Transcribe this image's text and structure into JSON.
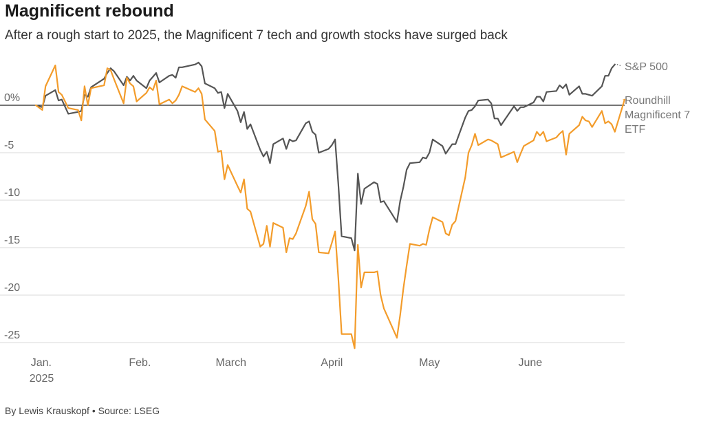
{
  "header": {
    "title": "Magnificent rebound",
    "subtitle": "After a rough start to 2025, the Magnificent 7 tech and growth stocks have surged back"
  },
  "footer": {
    "credit": "By Lewis Krauskopf • Source: LSEG"
  },
  "colors": {
    "sp500": "#555555",
    "mag7": "#f39c2b",
    "grid": "#d9d9d9",
    "zero_line": "#222222"
  },
  "chart_data": {
    "type": "line",
    "title": "Magnificent rebound",
    "subtitle": "After a rough start to 2025, the Magnificent 7 tech and growth stocks have surged back",
    "xlabel": "",
    "ylabel": "",
    "ylim": [
      -25,
      5
    ],
    "y_ticks": [
      {
        "value": 0,
        "label": "0%"
      },
      {
        "value": -5,
        "label": "-5"
      },
      {
        "value": -10,
        "label": "-10"
      },
      {
        "value": -15,
        "label": "-15"
      },
      {
        "value": -20,
        "label": "-20"
      },
      {
        "value": -25,
        "label": "-25"
      }
    ],
    "x_ticks": [
      {
        "date": "2025-01-01",
        "label": "Jan.",
        "sublabel": "2025"
      },
      {
        "date": "2025-02-01",
        "label": "Feb."
      },
      {
        "date": "2025-03-01",
        "label": "March"
      },
      {
        "date": "2025-04-01",
        "label": "April"
      },
      {
        "date": "2025-05-01",
        "label": "May"
      },
      {
        "date": "2025-06-01",
        "label": "June"
      }
    ],
    "xlim": [
      "2024-12-31",
      "2025-06-30"
    ],
    "grid": true,
    "series": [
      {
        "name": "S&P 500",
        "color_key": "sp500",
        "points": [
          [
            "2024-12-31",
            0.0
          ],
          [
            "2025-01-02",
            -0.2
          ],
          [
            "2025-01-03",
            1.0
          ],
          [
            "2025-01-06",
            1.6
          ],
          [
            "2025-01-07",
            0.5
          ],
          [
            "2025-01-08",
            0.6
          ],
          [
            "2025-01-10",
            -0.9
          ],
          [
            "2025-01-13",
            -0.7
          ],
          [
            "2025-01-14",
            -0.6
          ],
          [
            "2025-01-15",
            1.1
          ],
          [
            "2025-01-16",
            0.9
          ],
          [
            "2025-01-17",
            1.9
          ],
          [
            "2025-01-21",
            2.8
          ],
          [
            "2025-01-22",
            3.4
          ],
          [
            "2025-01-23",
            3.9
          ],
          [
            "2025-01-24",
            3.6
          ],
          [
            "2025-01-27",
            2.1
          ],
          [
            "2025-01-28",
            3.0
          ],
          [
            "2025-01-29",
            2.6
          ],
          [
            "2025-01-30",
            3.1
          ],
          [
            "2025-01-31",
            2.6
          ],
          [
            "2025-02-03",
            1.8
          ],
          [
            "2025-02-04",
            2.6
          ],
          [
            "2025-02-05",
            3.0
          ],
          [
            "2025-02-06",
            3.4
          ],
          [
            "2025-02-07",
            2.4
          ],
          [
            "2025-02-10",
            3.1
          ],
          [
            "2025-02-11",
            3.2
          ],
          [
            "2025-02-12",
            2.9
          ],
          [
            "2025-02-13",
            4.0
          ],
          [
            "2025-02-14",
            4.0
          ],
          [
            "2025-02-18",
            4.3
          ],
          [
            "2025-02-19",
            4.5
          ],
          [
            "2025-02-20",
            4.1
          ],
          [
            "2025-02-21",
            2.3
          ],
          [
            "2025-02-24",
            1.8
          ],
          [
            "2025-02-25",
            1.3
          ],
          [
            "2025-02-26",
            1.4
          ],
          [
            "2025-02-27",
            -0.3
          ],
          [
            "2025-02-28",
            1.2
          ],
          [
            "2025-03-03",
            -0.6
          ],
          [
            "2025-03-04",
            -1.8
          ],
          [
            "2025-03-05",
            -0.7
          ],
          [
            "2025-03-06",
            -2.5
          ],
          [
            "2025-03-07",
            -2.0
          ],
          [
            "2025-03-10",
            -4.7
          ],
          [
            "2025-03-11",
            -5.4
          ],
          [
            "2025-03-12",
            -4.9
          ],
          [
            "2025-03-13",
            -6.1
          ],
          [
            "2025-03-14",
            -4.1
          ],
          [
            "2025-03-17",
            -3.5
          ],
          [
            "2025-03-18",
            -4.6
          ],
          [
            "2025-03-19",
            -3.6
          ],
          [
            "2025-03-20",
            -3.8
          ],
          [
            "2025-03-21",
            -3.7
          ],
          [
            "2025-03-24",
            -1.9
          ],
          [
            "2025-03-25",
            -1.7
          ],
          [
            "2025-03-26",
            -2.8
          ],
          [
            "2025-03-27",
            -3.1
          ],
          [
            "2025-03-28",
            -5.0
          ],
          [
            "2025-03-31",
            -4.6
          ],
          [
            "2025-04-01",
            -4.2
          ],
          [
            "2025-04-02",
            -3.6
          ],
          [
            "2025-04-03",
            -8.3
          ],
          [
            "2025-04-04",
            -13.8
          ],
          [
            "2025-04-07",
            -14.0
          ],
          [
            "2025-04-08",
            -15.3
          ],
          [
            "2025-04-09",
            -7.2
          ],
          [
            "2025-04-10",
            -10.4
          ],
          [
            "2025-04-11",
            -8.8
          ],
          [
            "2025-04-14",
            -8.1
          ],
          [
            "2025-04-15",
            -8.3
          ],
          [
            "2025-04-16",
            -10.2
          ],
          [
            "2025-04-17",
            -10.1
          ],
          [
            "2025-04-21",
            -12.3
          ],
          [
            "2025-04-22",
            -10.1
          ],
          [
            "2025-04-23",
            -8.6
          ],
          [
            "2025-04-24",
            -6.8
          ],
          [
            "2025-04-25",
            -6.1
          ],
          [
            "2025-04-28",
            -6.0
          ],
          [
            "2025-04-29",
            -5.5
          ],
          [
            "2025-04-30",
            -5.6
          ],
          [
            "2025-05-01",
            -5.0
          ],
          [
            "2025-05-02",
            -3.6
          ],
          [
            "2025-05-05",
            -4.3
          ],
          [
            "2025-05-06",
            -5.1
          ],
          [
            "2025-05-07",
            -4.6
          ],
          [
            "2025-05-08",
            -4.1
          ],
          [
            "2025-05-09",
            -4.1
          ],
          [
            "2025-05-12",
            -1.3
          ],
          [
            "2025-05-13",
            -0.6
          ],
          [
            "2025-05-14",
            -0.5
          ],
          [
            "2025-05-15",
            -0.1
          ],
          [
            "2025-05-16",
            0.5
          ],
          [
            "2025-05-19",
            0.6
          ],
          [
            "2025-05-20",
            0.2
          ],
          [
            "2025-05-21",
            -1.4
          ],
          [
            "2025-05-22",
            -1.4
          ],
          [
            "2025-05-23",
            -2.1
          ],
          [
            "2025-05-27",
            -0.1
          ],
          [
            "2025-05-28",
            -0.6
          ],
          [
            "2025-05-29",
            -0.2
          ],
          [
            "2025-05-30",
            -0.2
          ],
          [
            "2025-06-02",
            0.3
          ],
          [
            "2025-06-03",
            0.9
          ],
          [
            "2025-06-04",
            0.9
          ],
          [
            "2025-06-05",
            0.4
          ],
          [
            "2025-06-06",
            1.4
          ],
          [
            "2025-06-09",
            1.5
          ],
          [
            "2025-06-10",
            2.1
          ],
          [
            "2025-06-11",
            1.8
          ],
          [
            "2025-06-12",
            2.2
          ],
          [
            "2025-06-13",
            1.1
          ],
          [
            "2025-06-16",
            2.0
          ],
          [
            "2025-06-17",
            1.2
          ],
          [
            "2025-06-18",
            1.2
          ],
          [
            "2025-06-20",
            1.0
          ],
          [
            "2025-06-23",
            2.0
          ],
          [
            "2025-06-24",
            3.1
          ],
          [
            "2025-06-25",
            3.1
          ],
          [
            "2025-06-26",
            3.9
          ],
          [
            "2025-06-27",
            4.3
          ]
        ]
      },
      {
        "name": "Roundhill Magnificent 7 ETF",
        "label_lines": [
          "Roundhill",
          "Magnificent 7",
          "ETF"
        ],
        "color_key": "mag7",
        "points": [
          [
            "2024-12-31",
            0.0
          ],
          [
            "2025-01-02",
            -0.5
          ],
          [
            "2025-01-03",
            2.0
          ],
          [
            "2025-01-06",
            4.2
          ],
          [
            "2025-01-07",
            1.4
          ],
          [
            "2025-01-08",
            1.1
          ],
          [
            "2025-01-10",
            -0.3
          ],
          [
            "2025-01-13",
            -0.5
          ],
          [
            "2025-01-14",
            -1.6
          ],
          [
            "2025-01-15",
            2.0
          ],
          [
            "2025-01-16",
            0.0
          ],
          [
            "2025-01-17",
            1.8
          ],
          [
            "2025-01-21",
            2.1
          ],
          [
            "2025-01-22",
            3.9
          ],
          [
            "2025-01-23",
            3.7
          ],
          [
            "2025-01-24",
            2.8
          ],
          [
            "2025-01-27",
            0.2
          ],
          [
            "2025-01-28",
            2.9
          ],
          [
            "2025-01-29",
            2.3
          ],
          [
            "2025-01-30",
            2.0
          ],
          [
            "2025-01-31",
            0.4
          ],
          [
            "2025-02-03",
            1.3
          ],
          [
            "2025-02-04",
            1.9
          ],
          [
            "2025-02-05",
            1.6
          ],
          [
            "2025-02-06",
            2.6
          ],
          [
            "2025-02-07",
            0.1
          ],
          [
            "2025-02-10",
            0.6
          ],
          [
            "2025-02-11",
            0.2
          ],
          [
            "2025-02-12",
            0.5
          ],
          [
            "2025-02-13",
            1.1
          ],
          [
            "2025-02-14",
            2.0
          ],
          [
            "2025-02-18",
            1.4
          ],
          [
            "2025-02-19",
            1.8
          ],
          [
            "2025-02-20",
            1.2
          ],
          [
            "2025-02-21",
            -1.5
          ],
          [
            "2025-02-24",
            -2.7
          ],
          [
            "2025-02-25",
            -4.9
          ],
          [
            "2025-02-26",
            -4.8
          ],
          [
            "2025-02-27",
            -7.8
          ],
          [
            "2025-02-28",
            -6.3
          ],
          [
            "2025-03-03",
            -8.5
          ],
          [
            "2025-03-04",
            -9.2
          ],
          [
            "2025-03-05",
            -7.8
          ],
          [
            "2025-03-06",
            -10.9
          ],
          [
            "2025-03-07",
            -11.2
          ],
          [
            "2025-03-10",
            -14.9
          ],
          [
            "2025-03-11",
            -14.6
          ],
          [
            "2025-03-12",
            -12.7
          ],
          [
            "2025-03-13",
            -14.9
          ],
          [
            "2025-03-14",
            -12.4
          ],
          [
            "2025-03-17",
            -12.9
          ],
          [
            "2025-03-18",
            -15.5
          ],
          [
            "2025-03-19",
            -14.0
          ],
          [
            "2025-03-20",
            -14.1
          ],
          [
            "2025-03-21",
            -13.5
          ],
          [
            "2025-03-24",
            -10.6
          ],
          [
            "2025-03-25",
            -9.1
          ],
          [
            "2025-03-26",
            -12.0
          ],
          [
            "2025-03-27",
            -12.5
          ],
          [
            "2025-03-28",
            -15.5
          ],
          [
            "2025-03-31",
            -15.6
          ],
          [
            "2025-04-01",
            -14.5
          ],
          [
            "2025-04-02",
            -13.3
          ],
          [
            "2025-04-03",
            -18.2
          ],
          [
            "2025-04-04",
            -24.1
          ],
          [
            "2025-04-07",
            -24.1
          ],
          [
            "2025-04-08",
            -25.6
          ],
          [
            "2025-04-09",
            -14.7
          ],
          [
            "2025-04-10",
            -19.2
          ],
          [
            "2025-04-11",
            -17.6
          ],
          [
            "2025-04-14",
            -17.6
          ],
          [
            "2025-04-15",
            -17.5
          ],
          [
            "2025-04-16",
            -20.0
          ],
          [
            "2025-04-17",
            -21.4
          ],
          [
            "2025-04-21",
            -24.5
          ],
          [
            "2025-04-22",
            -22.1
          ],
          [
            "2025-04-23",
            -19.3
          ],
          [
            "2025-04-24",
            -16.9
          ],
          [
            "2025-04-25",
            -14.6
          ],
          [
            "2025-04-28",
            -14.8
          ],
          [
            "2025-04-29",
            -14.6
          ],
          [
            "2025-04-30",
            -14.7
          ],
          [
            "2025-05-01",
            -13.1
          ],
          [
            "2025-05-02",
            -11.8
          ],
          [
            "2025-05-05",
            -12.3
          ],
          [
            "2025-05-06",
            -13.5
          ],
          [
            "2025-05-07",
            -13.7
          ],
          [
            "2025-05-08",
            -12.6
          ],
          [
            "2025-05-09",
            -12.2
          ],
          [
            "2025-05-12",
            -7.6
          ],
          [
            "2025-05-13",
            -5.0
          ],
          [
            "2025-05-14",
            -4.2
          ],
          [
            "2025-05-15",
            -3.0
          ],
          [
            "2025-05-16",
            -4.2
          ],
          [
            "2025-05-19",
            -3.6
          ],
          [
            "2025-05-20",
            -3.7
          ],
          [
            "2025-05-21",
            -3.9
          ],
          [
            "2025-05-22",
            -4.1
          ],
          [
            "2025-05-23",
            -5.5
          ],
          [
            "2025-05-27",
            -4.9
          ],
          [
            "2025-05-28",
            -6.0
          ],
          [
            "2025-05-29",
            -5.1
          ],
          [
            "2025-05-30",
            -4.3
          ],
          [
            "2025-06-02",
            -3.7
          ],
          [
            "2025-06-03",
            -2.8
          ],
          [
            "2025-06-04",
            -3.2
          ],
          [
            "2025-06-05",
            -2.8
          ],
          [
            "2025-06-06",
            -3.8
          ],
          [
            "2025-06-09",
            -3.4
          ],
          [
            "2025-06-10",
            -3.0
          ],
          [
            "2025-06-11",
            -2.7
          ],
          [
            "2025-06-12",
            -5.2
          ],
          [
            "2025-06-13",
            -3.0
          ],
          [
            "2025-06-16",
            -2.1
          ],
          [
            "2025-06-17",
            -1.2
          ],
          [
            "2025-06-18",
            -1.6
          ],
          [
            "2025-06-19",
            -1.7
          ],
          [
            "2025-06-20",
            -2.3
          ],
          [
            "2025-06-23",
            -0.6
          ],
          [
            "2025-06-24",
            -1.9
          ],
          [
            "2025-06-25",
            -1.7
          ],
          [
            "2025-06-26",
            -2.0
          ],
          [
            "2025-06-27",
            -2.8
          ],
          [
            "2025-06-30",
            0.6
          ]
        ]
      }
    ]
  }
}
